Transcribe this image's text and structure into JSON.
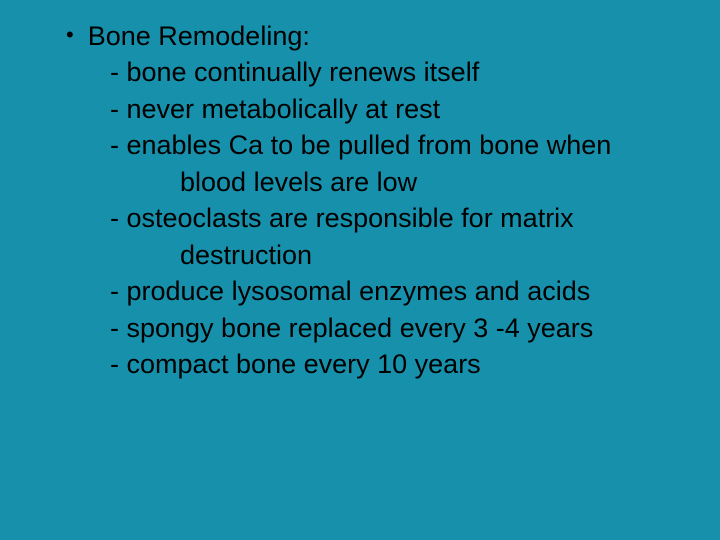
{
  "slide": {
    "background_color": "#1690ab",
    "text_color": "#000000",
    "font_family": "Arial",
    "font_size_pt": 27,
    "bullet_char": "•",
    "title": "Bone Remodeling:",
    "lines": {
      "l1": "- bone continually renews itself",
      "l2": "- never metabolically at rest",
      "l3": "- enables Ca to be pulled from bone when",
      "l3b": "blood levels are low",
      "l4": "- osteoclasts are responsible for matrix",
      "l4b": "destruction",
      "l5": "- produce lysosomal enzymes and acids",
      "l6": "- spongy bone replaced every 3 -4 years",
      "l7": "- compact bone every 10 years"
    }
  }
}
